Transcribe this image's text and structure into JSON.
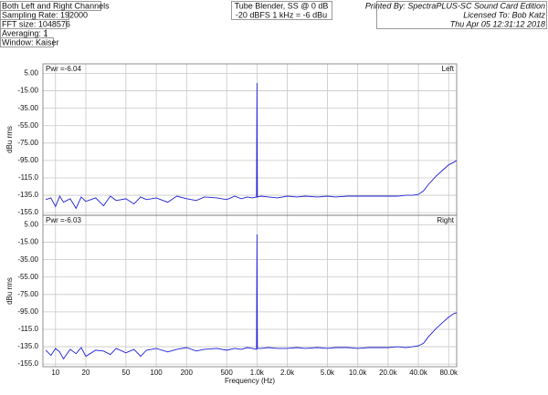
{
  "header": {
    "left": [
      "Both Left and Right Channels",
      "Sampling Rate: 192000",
      "FFT size: 1048576",
      "Averaging: 1",
      "Window: Kaiser"
    ],
    "center": [
      "Tube Blender, SS @ 0 dB",
      "-20 dBFS 1 kHz = -6 dBu"
    ],
    "right": [
      "Printed By: SpectraPLUS-SC Sound Card Edition",
      "Licensed To: Bob Katz",
      "Thu Apr 05 12:31:12 2018"
    ]
  },
  "chart_data": [
    {
      "type": "line",
      "channel": "Left",
      "annotation": "Pwr =-6.04",
      "y_label": "dBu rms",
      "color": "#1f1fd6",
      "log_x": true,
      "grid": true,
      "xlim": [
        7.5,
        96000
      ],
      "ylim": [
        -158,
        16
      ],
      "xticks": [
        10,
        20,
        50,
        100,
        200,
        500,
        1000,
        2000,
        5000,
        10000,
        20000,
        40000,
        80000
      ],
      "yticks": [
        {
          "value": 5,
          "label": "5.00"
        },
        {
          "value": -15,
          "label": "-15.00"
        },
        {
          "value": -35,
          "label": "-35.00"
        },
        {
          "value": -55,
          "label": "-55.00"
        },
        {
          "value": -75,
          "label": "-75.00"
        },
        {
          "value": -95,
          "label": "-95.00"
        },
        {
          "value": -115,
          "label": "-115.0"
        },
        {
          "value": -135,
          "label": "-135.0"
        },
        {
          "value": -155,
          "label": "-155.0"
        }
      ],
      "x": [
        8,
        9,
        10,
        11,
        12,
        14,
        16,
        18,
        20,
        25,
        30,
        35,
        40,
        50,
        60,
        70,
        80,
        100,
        130,
        160,
        200,
        250,
        300,
        400,
        500,
        600,
        700,
        800,
        900,
        990,
        1000,
        1010,
        1100,
        1300,
        1600,
        2000,
        2500,
        3000,
        4000,
        5000,
        6000,
        8000,
        10000,
        13000,
        16000,
        20000,
        25000,
        30000,
        35000,
        40000,
        45000,
        50000,
        60000,
        70000,
        80000,
        90000,
        96000
      ],
      "values": [
        -140,
        -138,
        -148,
        -136,
        -143,
        -139,
        -150,
        -137,
        -142,
        -138,
        -147,
        -136,
        -141,
        -139,
        -145,
        -137,
        -140,
        -138,
        -143,
        -136,
        -139,
        -141,
        -137,
        -138,
        -140,
        -136,
        -139,
        -137,
        -138,
        -137,
        -6,
        -137,
        -136,
        -137,
        -138,
        -136,
        -137,
        -136,
        -137,
        -136,
        -137,
        -136,
        -136,
        -136,
        -136,
        -136,
        -136,
        -135,
        -135,
        -134,
        -130,
        -123,
        -113,
        -106,
        -100,
        -97,
        -95
      ]
    },
    {
      "type": "line",
      "channel": "Right",
      "annotation": "Pwr =-6.03",
      "y_label": "dBu rms",
      "x_label": "Frequency (Hz)",
      "color": "#1f1fd6",
      "log_x": true,
      "grid": true,
      "xlim": [
        7.5,
        96000
      ],
      "ylim": [
        -158,
        16
      ],
      "xticks": [
        10,
        20,
        50,
        100,
        200,
        500,
        {
          "value": 1000,
          "label": "1.0k"
        },
        {
          "value": 2000,
          "label": "2.0k"
        },
        {
          "value": 5000,
          "label": "5.0k"
        },
        {
          "value": 10000,
          "label": "10.0k"
        },
        {
          "value": 20000,
          "label": "20.0k"
        },
        {
          "value": 40000,
          "label": "40.0k"
        },
        {
          "value": 80000,
          "label": "80.0k"
        }
      ],
      "yticks": [
        {
          "value": 5,
          "label": "5.00"
        },
        {
          "value": -15,
          "label": "-15.00"
        },
        {
          "value": -35,
          "label": "-35.00"
        },
        {
          "value": -55,
          "label": "-55.00"
        },
        {
          "value": -75,
          "label": "-75.00"
        },
        {
          "value": -95,
          "label": "-95.00"
        },
        {
          "value": -115,
          "label": "-115.0"
        },
        {
          "value": -135,
          "label": "-135.0"
        },
        {
          "value": -155,
          "label": "-155.0"
        }
      ],
      "x": [
        8,
        9,
        10,
        11,
        12,
        14,
        16,
        18,
        20,
        25,
        30,
        35,
        40,
        50,
        60,
        70,
        80,
        100,
        130,
        160,
        200,
        250,
        300,
        400,
        500,
        600,
        700,
        800,
        900,
        990,
        1000,
        1010,
        1100,
        1300,
        1600,
        2000,
        2500,
        3000,
        4000,
        5000,
        6000,
        8000,
        10000,
        13000,
        16000,
        20000,
        25000,
        30000,
        35000,
        40000,
        45000,
        50000,
        60000,
        70000,
        80000,
        90000,
        96000
      ],
      "values": [
        -139,
        -145,
        -137,
        -141,
        -149,
        -138,
        -143,
        -136,
        -146,
        -139,
        -140,
        -144,
        -137,
        -142,
        -138,
        -146,
        -139,
        -137,
        -141,
        -138,
        -136,
        -140,
        -138,
        -137,
        -139,
        -137,
        -138,
        -136,
        -137,
        -138,
        -6,
        -137,
        -137,
        -136,
        -137,
        -137,
        -136,
        -137,
        -136,
        -137,
        -136,
        -136,
        -137,
        -136,
        -136,
        -136,
        -135,
        -136,
        -135,
        -134,
        -131,
        -124,
        -114,
        -107,
        -101,
        -97,
        -96
      ]
    }
  ]
}
